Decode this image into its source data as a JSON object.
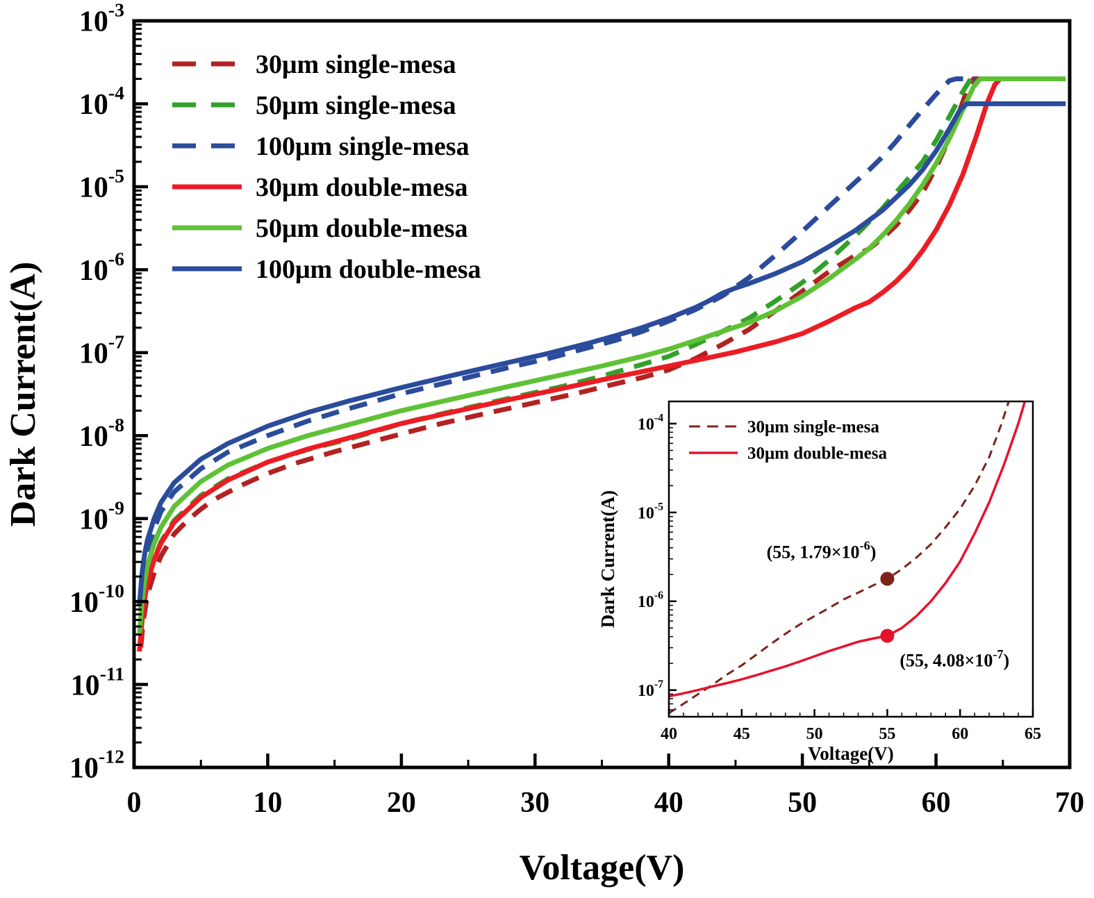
{
  "chart_data": {
    "type": "line",
    "title": "",
    "xlabel": "Voltage(V)",
    "ylabel": "Dark Current(A)",
    "grid": false,
    "legend_position": "upper-left",
    "x_axis": {
      "min": 0,
      "max": 70,
      "major_ticks": [
        0,
        10,
        20,
        30,
        40,
        50,
        60,
        70
      ],
      "minor_step": 5
    },
    "y_axis": {
      "scale": "log",
      "min_exp": -12,
      "max_exp": -3,
      "tick_exponents": [
        -3,
        -4,
        -5,
        -6,
        -7,
        -8,
        -9,
        -10,
        -11,
        -12
      ]
    },
    "series": [
      {
        "id": "30um-single-mesa",
        "name": "30μm single-mesa",
        "style": "dashed",
        "color": "#B22222",
        "points": [
          [
            0.5,
            2.8e-11
          ],
          [
            0.7,
            6e-11
          ],
          [
            1,
            1.2e-10
          ],
          [
            1.5,
            2.2e-10
          ],
          [
            2,
            3.5e-10
          ],
          [
            3,
            6.5e-10
          ],
          [
            4,
            9.5e-10
          ],
          [
            5,
            1.3e-09
          ],
          [
            6,
            1.7e-09
          ],
          [
            8,
            2.5e-09
          ],
          [
            10,
            3.5e-09
          ],
          [
            12,
            4.6e-09
          ],
          [
            15,
            6.4e-09
          ],
          [
            18,
            8.6e-09
          ],
          [
            20,
            1.05e-08
          ],
          [
            23,
            1.4e-08
          ],
          [
            26,
            1.8e-08
          ],
          [
            30,
            2.5e-08
          ],
          [
            33,
            3.2e-08
          ],
          [
            36,
            4.2e-08
          ],
          [
            38,
            5e-08
          ],
          [
            40,
            6.2e-08
          ],
          [
            42,
            8.5e-08
          ],
          [
            44,
            1.25e-07
          ],
          [
            46,
            1.9e-07
          ],
          [
            48,
            3.2e-07
          ],
          [
            50,
            5.5e-07
          ],
          [
            52,
            9.5e-07
          ],
          [
            54,
            1.5e-06
          ],
          [
            55,
            1.79e-06
          ],
          [
            56,
            2.4e-06
          ],
          [
            57,
            3.4e-06
          ],
          [
            58,
            5.2e-06
          ],
          [
            59,
            8.5e-06
          ],
          [
            60,
            1.7e-05
          ],
          [
            61,
            3.8e-05
          ],
          [
            61.8,
            8.5e-05
          ],
          [
            62.4,
            0.00016
          ],
          [
            62.8,
            0.0002
          ],
          [
            63.6,
            0.0002
          ]
        ]
      },
      {
        "id": "50um-single-mesa",
        "name": "50μm single-mesa",
        "style": "dashed",
        "color": "#33A02C",
        "points": [
          [
            0.5,
            3.8e-11
          ],
          [
            0.7,
            9e-11
          ],
          [
            1,
            1.8e-10
          ],
          [
            1.5,
            3.2e-10
          ],
          [
            2,
            5.2e-10
          ],
          [
            3,
            9.5e-10
          ],
          [
            5,
            1.9e-09
          ],
          [
            7,
            3e-09
          ],
          [
            10,
            4.8e-09
          ],
          [
            13,
            6.8e-09
          ],
          [
            16,
            9e-09
          ],
          [
            20,
            1.4e-08
          ],
          [
            24,
            2e-08
          ],
          [
            28,
            2.8e-08
          ],
          [
            32,
            3.9e-08
          ],
          [
            35,
            5.2e-08
          ],
          [
            38,
            7.2e-08
          ],
          [
            40,
            9e-08
          ],
          [
            42,
            1.25e-07
          ],
          [
            44,
            1.8e-07
          ],
          [
            46,
            2.6e-07
          ],
          [
            48,
            4.2e-07
          ],
          [
            50,
            7e-07
          ],
          [
            52,
            1.3e-06
          ],
          [
            54,
            2.6e-06
          ],
          [
            56,
            5.5e-06
          ],
          [
            58,
            1.3e-05
          ],
          [
            59,
            2e-05
          ],
          [
            60,
            3.6e-05
          ],
          [
            61,
            7e-05
          ],
          [
            62,
            0.00014
          ],
          [
            62.6,
            0.0002
          ],
          [
            63.4,
            0.0002
          ]
        ]
      },
      {
        "id": "100um-single-mesa",
        "name": "100μm single-mesa",
        "style": "dashed",
        "color": "#2B4B9B",
        "points": [
          [
            0.5,
            8e-11
          ],
          [
            0.7,
            2e-10
          ],
          [
            1,
            4e-10
          ],
          [
            1.5,
            7.5e-10
          ],
          [
            2,
            1.2e-09
          ],
          [
            3,
            2.1e-09
          ],
          [
            5,
            4e-09
          ],
          [
            7,
            6.3e-09
          ],
          [
            10,
            1e-08
          ],
          [
            13,
            1.5e-08
          ],
          [
            16,
            2.1e-08
          ],
          [
            20,
            3.2e-08
          ],
          [
            24,
            4.6e-08
          ],
          [
            28,
            6.6e-08
          ],
          [
            31,
            8.5e-08
          ],
          [
            34,
            1.15e-07
          ],
          [
            36,
            1.4e-07
          ],
          [
            38,
            1.8e-07
          ],
          [
            40,
            2.4e-07
          ],
          [
            42,
            3.3e-07
          ],
          [
            44,
            4.8e-07
          ],
          [
            46,
            8e-07
          ],
          [
            48,
            1.5e-06
          ],
          [
            50,
            2.9e-06
          ],
          [
            52,
            5.8e-06
          ],
          [
            54,
            1.15e-05
          ],
          [
            55,
            1.6e-05
          ],
          [
            56,
            2.3e-05
          ],
          [
            57,
            3.5e-05
          ],
          [
            58,
            5.5e-05
          ],
          [
            59,
            8.5e-05
          ],
          [
            60,
            0.00013
          ],
          [
            61,
            0.00019
          ],
          [
            61.5,
            0.0002
          ],
          [
            63,
            0.0002
          ]
        ]
      },
      {
        "id": "30um-double-mesa",
        "name": "30μm double-mesa",
        "style": "solid",
        "color": "#EC1C24",
        "points": [
          [
            0.4,
            2.5e-11
          ],
          [
            0.6,
            6e-11
          ],
          [
            0.8,
            1.1e-10
          ],
          [
            1,
            1.7e-10
          ],
          [
            1.5,
            3.2e-10
          ],
          [
            2,
            5e-10
          ],
          [
            3,
            9e-10
          ],
          [
            5,
            1.8e-09
          ],
          [
            7,
            2.9e-09
          ],
          [
            10,
            4.8e-09
          ],
          [
            13,
            6.9e-09
          ],
          [
            16,
            9.3e-09
          ],
          [
            20,
            1.4e-08
          ],
          [
            24,
            1.95e-08
          ],
          [
            28,
            2.7e-08
          ],
          [
            32,
            3.7e-08
          ],
          [
            35,
            4.7e-08
          ],
          [
            38,
            5.9e-08
          ],
          [
            40,
            6.9e-08
          ],
          [
            43,
            8.7e-08
          ],
          [
            45,
            1.02e-07
          ],
          [
            48,
            1.35e-07
          ],
          [
            50,
            1.7e-07
          ],
          [
            52,
            2.4e-07
          ],
          [
            54,
            3.5e-07
          ],
          [
            55,
            4.08e-07
          ],
          [
            56,
            5.3e-07
          ],
          [
            57,
            7.2e-07
          ],
          [
            58,
            1.05e-06
          ],
          [
            59,
            1.7e-06
          ],
          [
            60,
            3e-06
          ],
          [
            61,
            6e-06
          ],
          [
            62,
            1.4e-05
          ],
          [
            63,
            4e-05
          ],
          [
            63.8,
            0.0001
          ],
          [
            64.4,
            0.00017
          ],
          [
            64.8,
            0.0002
          ],
          [
            68,
            0.0002
          ]
        ]
      },
      {
        "id": "50um-double-mesa",
        "name": "50μm double-mesa",
        "style": "solid",
        "color": "#5FC136",
        "points": [
          [
            0.4,
            4e-11
          ],
          [
            0.6,
            1e-10
          ],
          [
            0.8,
            1.8e-10
          ],
          [
            1,
            2.7e-10
          ],
          [
            1.5,
            5e-10
          ],
          [
            2,
            7.8e-10
          ],
          [
            3,
            1.4e-09
          ],
          [
            5,
            2.8e-09
          ],
          [
            7,
            4.4e-09
          ],
          [
            10,
            7e-09
          ],
          [
            13,
            1e-08
          ],
          [
            16,
            1.35e-08
          ],
          [
            20,
            2e-08
          ],
          [
            24,
            2.8e-08
          ],
          [
            28,
            3.9e-08
          ],
          [
            32,
            5.4e-08
          ],
          [
            35,
            6.9e-08
          ],
          [
            38,
            9e-08
          ],
          [
            40,
            1.1e-07
          ],
          [
            42,
            1.4e-07
          ],
          [
            44,
            1.8e-07
          ],
          [
            46,
            2.3e-07
          ],
          [
            48,
            3.2e-07
          ],
          [
            50,
            4.8e-07
          ],
          [
            52,
            7.8e-07
          ],
          [
            54,
            1.35e-06
          ],
          [
            55,
            1.8e-06
          ],
          [
            56,
            2.6e-06
          ],
          [
            57,
            3.9e-06
          ],
          [
            58,
            6.2e-06
          ],
          [
            59,
            1.05e-05
          ],
          [
            60,
            1.9e-05
          ],
          [
            61,
            3.8e-05
          ],
          [
            62,
            8.5e-05
          ],
          [
            62.8,
            0.00016
          ],
          [
            63.3,
            0.0002
          ],
          [
            69.7,
            0.0002
          ]
        ]
      },
      {
        "id": "100um-double-mesa",
        "name": "100μm double-mesa",
        "style": "solid",
        "color": "#2B4B9B",
        "points": [
          [
            0.4,
            9e-11
          ],
          [
            0.6,
            2.2e-10
          ],
          [
            0.8,
            3.8e-10
          ],
          [
            1,
            5.5e-10
          ],
          [
            1.5,
            1e-09
          ],
          [
            2,
            1.55e-09
          ],
          [
            3,
            2.7e-09
          ],
          [
            5,
            5.2e-09
          ],
          [
            7,
            8e-09
          ],
          [
            10,
            1.3e-08
          ],
          [
            13,
            1.9e-08
          ],
          [
            16,
            2.6e-08
          ],
          [
            20,
            3.8e-08
          ],
          [
            24,
            5.4e-08
          ],
          [
            28,
            7.6e-08
          ],
          [
            31,
            9.8e-08
          ],
          [
            34,
            1.3e-07
          ],
          [
            36,
            1.6e-07
          ],
          [
            38,
            2e-07
          ],
          [
            40,
            2.6e-07
          ],
          [
            42,
            3.5e-07
          ],
          [
            43,
            4.2e-07
          ],
          [
            44,
            5.2e-07
          ],
          [
            45,
            6e-07
          ],
          [
            46,
            6.8e-07
          ],
          [
            48,
            9e-07
          ],
          [
            50,
            1.25e-06
          ],
          [
            52,
            1.9e-06
          ],
          [
            54,
            3e-06
          ],
          [
            56,
            5.2e-06
          ],
          [
            58,
            1.05e-05
          ],
          [
            59,
            1.6e-05
          ],
          [
            60,
            2.7e-05
          ],
          [
            61,
            5e-05
          ],
          [
            61.8,
            8.5e-05
          ],
          [
            62.3,
            0.0001
          ],
          [
            69.7,
            0.0001
          ]
        ]
      }
    ],
    "inset": {
      "xlabel": "Voltage(V)",
      "ylabel": "Dark Current(A)",
      "legend_position": "upper-left",
      "x_axis": {
        "min": 40,
        "max": 65,
        "major_ticks": [
          40,
          45,
          50,
          55,
          60,
          65
        ],
        "minor_step": 1
      },
      "y_axis": {
        "scale": "log",
        "min_exp": -7.3,
        "max_exp": -3.75,
        "tick_exponents": [
          -4,
          -5,
          -6,
          -7
        ]
      },
      "series": [
        {
          "id": "inset-30um-single-mesa",
          "name": "30μm single-mesa",
          "style": "dashed",
          "color": "#7B241C",
          "points": [
            [
              40,
              5.5e-08
            ],
            [
              41,
              7e-08
            ],
            [
              42,
              9e-08
            ],
            [
              43,
              1.15e-07
            ],
            [
              44,
              1.5e-07
            ],
            [
              45,
              1.9e-07
            ],
            [
              46,
              2.5e-07
            ],
            [
              47,
              3.3e-07
            ],
            [
              48,
              4.3e-07
            ],
            [
              49,
              5.5e-07
            ],
            [
              50,
              6.8e-07
            ],
            [
              51,
              8.4e-07
            ],
            [
              52,
              1.05e-06
            ],
            [
              53,
              1.25e-06
            ],
            [
              54,
              1.5e-06
            ],
            [
              55,
              1.79e-06
            ],
            [
              56,
              2.3e-06
            ],
            [
              57,
              3.1e-06
            ],
            [
              58,
              4.4e-06
            ],
            [
              59,
              6.8e-06
            ],
            [
              60,
              1.1e-05
            ],
            [
              61,
              2e-05
            ],
            [
              62,
              4.2e-05
            ],
            [
              62.8,
              9.5e-05
            ],
            [
              63.4,
              0.00019
            ]
          ]
        },
        {
          "id": "inset-30um-double-mesa",
          "name": "30μm double-mesa",
          "style": "solid",
          "color": "#E8112D",
          "points": [
            [
              40,
              8.5e-08
            ],
            [
              41,
              9.2e-08
            ],
            [
              42,
              1e-07
            ],
            [
              43,
              1.1e-07
            ],
            [
              44,
              1.2e-07
            ],
            [
              45,
              1.32e-07
            ],
            [
              46,
              1.47e-07
            ],
            [
              47,
              1.65e-07
            ],
            [
              48,
              1.85e-07
            ],
            [
              49,
              2.1e-07
            ],
            [
              50,
              2.4e-07
            ],
            [
              51,
              2.75e-07
            ],
            [
              52,
              3.1e-07
            ],
            [
              53,
              3.5e-07
            ],
            [
              54,
              3.8e-07
            ],
            [
              55,
              4.08e-07
            ],
            [
              56,
              5e-07
            ],
            [
              57,
              6.8e-07
            ],
            [
              58,
              1e-06
            ],
            [
              59,
              1.6e-06
            ],
            [
              60,
              2.8e-06
            ],
            [
              61,
              5.8e-06
            ],
            [
              62,
              1.3e-05
            ],
            [
              63,
              3.4e-05
            ],
            [
              64,
              0.0001
            ],
            [
              64.5,
              0.00019
            ]
          ]
        }
      ],
      "annotations": [
        {
          "x": 55,
          "x_text": "55",
          "mantissa": "1.79",
          "exponent": "-6",
          "y_value": 1.79e-06,
          "marker_color": "#7B241C",
          "label_side": "left-above"
        },
        {
          "x": 55,
          "x_text": "55",
          "mantissa": "4.08",
          "exponent": "-7",
          "y_value": 4.08e-07,
          "marker_color": "#E8112D",
          "label_side": "right-below"
        }
      ]
    }
  }
}
